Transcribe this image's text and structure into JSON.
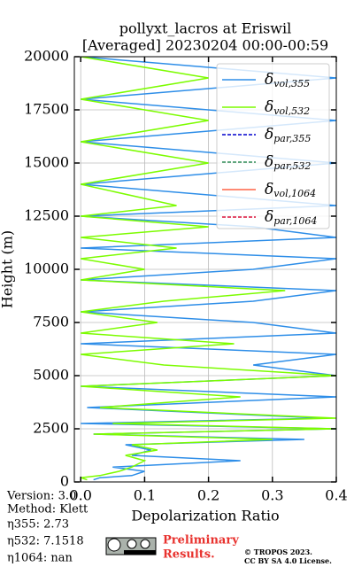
{
  "chart_data": {
    "type": "line",
    "title": "pollyxt_lacros at Eriswil",
    "subtitle": "[Averaged] 20230204 00:00-00:59",
    "x_label": "Depolarization Ratio",
    "y_label": "Height (m)",
    "xlim": [
      -0.01,
      0.4
    ],
    "ylim": [
      0,
      20000
    ],
    "xticks": [
      {
        "value": 0,
        "label": "0.0"
      },
      0.1,
      0.2,
      0.3,
      0.4
    ],
    "yticks": [
      0,
      2500,
      5000,
      7500,
      10000,
      12500,
      15000,
      17500,
      20000
    ],
    "grid": true,
    "legend": "upper right",
    "heights": [
      100,
      200,
      300,
      500,
      700,
      1000,
      1250,
      1500,
      1750,
      2000,
      2250,
      2500,
      2750,
      3000,
      3500,
      4000,
      4500,
      5000,
      5500,
      6000,
      6500,
      7000,
      7500,
      8000,
      8500,
      9000,
      9500,
      10000,
      10500,
      11000,
      11500,
      12000,
      12500,
      13000,
      14000,
      15000,
      16000,
      17000,
      18000,
      19000,
      20000
    ],
    "series": [
      {
        "name": "δvol,355",
        "color": "#2e8ee8",
        "dash": false,
        "values": [
          0.02,
          0.03,
          0.08,
          0.1,
          0.05,
          0.25,
          0.08,
          0.11,
          0.07,
          0.35,
          0.02,
          0.4,
          0.0,
          0.38,
          0.01,
          0.4,
          0.0,
          0.4,
          0.27,
          0.4,
          0.0,
          0.4,
          0.27,
          0.0,
          0.27,
          0.4,
          0.0,
          0.27,
          0.4,
          0.0,
          0.4,
          0.27,
          0.0,
          0.4,
          0.0,
          0.4,
          0.0,
          0.4,
          0.0,
          0.4,
          0.0
        ]
      },
      {
        "name": "δvol,532",
        "color": "#7cfc00",
        "dash": false,
        "values": [
          0.01,
          0.0,
          0.03,
          0.06,
          0.08,
          0.1,
          0.07,
          0.12,
          0.08,
          0.3,
          0.02,
          0.4,
          0.05,
          0.4,
          0.03,
          0.25,
          0.0,
          0.4,
          0.13,
          0.0,
          0.24,
          0.0,
          0.12,
          0.0,
          0.13,
          0.32,
          0.0,
          0.1,
          0.0,
          0.15,
          0.0,
          0.2,
          0.0,
          0.15,
          0.0,
          0.2,
          0.0,
          0.2,
          0.0,
          0.2,
          0.0
        ]
      },
      {
        "name": "δpar,355",
        "color": "#0000cd",
        "dash": true,
        "values": [
          null,
          null,
          null,
          null,
          null,
          null,
          null,
          null,
          null,
          null,
          null,
          null,
          null,
          null,
          null,
          null,
          null,
          null,
          null,
          null,
          null,
          null,
          null,
          null,
          null,
          null,
          null,
          null,
          null,
          null,
          null,
          null,
          null,
          null,
          null,
          null,
          null,
          null,
          null,
          null,
          null
        ]
      },
      {
        "name": "δpar,532",
        "color": "#2e8b57",
        "dash": true,
        "values": [
          null,
          null,
          null,
          null,
          null,
          null,
          null,
          null,
          null,
          null,
          null,
          null,
          null,
          null,
          null,
          null,
          null,
          null,
          null,
          null,
          null,
          null,
          null,
          null,
          null,
          null,
          null,
          null,
          null,
          null,
          null,
          null,
          null,
          null,
          null,
          null,
          null,
          null,
          null,
          null,
          null
        ]
      },
      {
        "name": "δvol,1064",
        "color": "#ff6347",
        "dash": false,
        "values": [
          null,
          null,
          null,
          null,
          null,
          null,
          null,
          null,
          null,
          null,
          null,
          null,
          null,
          null,
          null,
          null,
          null,
          null,
          null,
          null,
          null,
          null,
          null,
          null,
          null,
          null,
          null,
          null,
          null,
          null,
          null,
          null,
          null,
          null,
          null,
          null,
          null,
          null,
          null,
          null,
          null
        ]
      },
      {
        "name": "δpar,1064",
        "color": "#dc143c",
        "dash": true,
        "values": [
          null,
          null,
          null,
          null,
          null,
          null,
          null,
          null,
          null,
          null,
          null,
          null,
          null,
          null,
          null,
          null,
          null,
          null,
          null,
          null,
          null,
          null,
          null,
          null,
          null,
          null,
          null,
          null,
          null,
          null,
          null,
          null,
          null,
          null,
          null,
          null,
          null,
          null,
          null,
          null,
          null
        ]
      }
    ],
    "notes": [
      "Version: 3.0",
      "Method: Klett",
      "η355:   2.73",
      "η532: 7.1518",
      "η1064:    nan"
    ],
    "badge": [
      "Preliminary",
      "Results."
    ],
    "copyright": [
      "© TROPOS 2023.",
      "CC BY SA 4.0 License."
    ]
  }
}
